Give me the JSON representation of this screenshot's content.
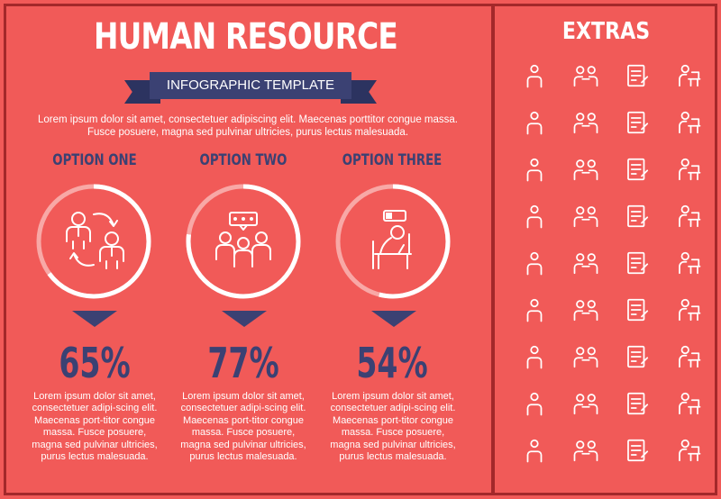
{
  "header": {
    "title": "HUMAN RESOURCE",
    "ribbon": "INFOGRAPHIC TEMPLATE",
    "intro": "Lorem ipsum dolor sit amet, consectetuer adipiscing elit. Maecenas porttitor congue massa. Fusce posuere, magna sed pulvinar ultricies, purus lectus malesuada."
  },
  "options": [
    {
      "title": "OPTION ONE",
      "percent": "65%",
      "value": 65,
      "icon": "exchange-people-icon",
      "text": "Lorem ipsum dolor sit amet, consectetuer adipi-scing elit. Maecenas port-titor congue massa. Fusce posuere, magna sed pulvinar ultricies, purus lectus malesuada."
    },
    {
      "title": "OPTION TWO",
      "percent": "77%",
      "value": 77,
      "icon": "team-discussion-icon",
      "text": "Lorem ipsum dolor sit amet, consectetuer adipi-scing elit. Maecenas port-titor congue massa. Fusce posuere, magna sed pulvinar ultricies, purus lectus malesuada."
    },
    {
      "title": "OPTION THREE",
      "percent": "54%",
      "value": 54,
      "icon": "tired-worker-icon",
      "text": "Lorem ipsum dolor sit amet, consectetuer adipi-scing elit. Maecenas port-titor congue massa. Fusce posuere, magna sed pulvinar ultricies, purus lectus malesuada."
    }
  ],
  "extras": {
    "title": "EXTRAS",
    "icons": [
      "team-leader-icon",
      "meeting-icon",
      "document-sign-icon",
      "desk-worker-icon",
      "dollar-icon",
      "success-person-icon",
      "downtrend-icon",
      "businessman-walking-icon",
      "presentation-icon",
      "manager-icon",
      "stress-icon",
      "deadline-icon",
      "group-icon",
      "winner-icon",
      "growth-icon",
      "standing-person-icon",
      "diamond-icon",
      "heart-icon",
      "board-chart-icon",
      "idea-person-icon",
      "money-bag-icon",
      "piggy-bank-icon",
      "whiteboard-icon",
      "monitor-icon",
      "cash-stack-icon",
      "laptop-worker-icon",
      "chart-presenter-icon",
      "recycle-icon",
      "shop-icon",
      "doctor-icon",
      "conference-icon",
      "checklist-icon",
      "globe-icon",
      "audience-icon",
      "direction-person-icon",
      "people-exchange-icon"
    ]
  },
  "colors": {
    "background": "#f15a58",
    "accent": "#3b4173",
    "frame": "#a3282a",
    "ring_bg": "#f8a8a6"
  }
}
